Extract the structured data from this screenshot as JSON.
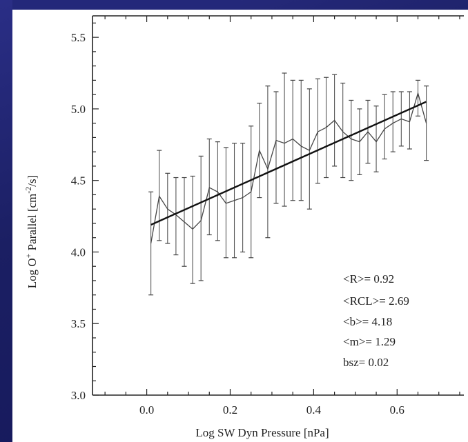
{
  "chart_data": {
    "type": "line",
    "xlabel": "Log SW Dyn Pressure [nPa]",
    "ylabel_main": "Log O",
    "ylabel_sup_plus": "+",
    "ylabel_mid": " Parallel [cm",
    "ylabel_sup_exp": "-2",
    "ylabel_end": "/s]",
    "xlim": [
      -0.13,
      0.76
    ],
    "ylim": [
      3.0,
      5.65
    ],
    "xticks": [
      0.0,
      0.2,
      0.4,
      0.6
    ],
    "xtick_labels": [
      "0.0",
      "0.2",
      "0.4",
      "0.6"
    ],
    "yticks": [
      3.0,
      3.5,
      4.0,
      4.5,
      5.0,
      5.5
    ],
    "ytick_labels": [
      "3.0",
      "3.5",
      "4.0",
      "4.5",
      "5.0",
      "5.5"
    ],
    "series": [
      {
        "x": [
          0.01,
          0.03,
          0.05,
          0.07,
          0.09,
          0.11,
          0.13,
          0.15,
          0.17,
          0.19,
          0.21,
          0.23,
          0.25,
          0.27,
          0.29,
          0.31,
          0.33,
          0.35,
          0.37,
          0.39,
          0.41,
          0.43,
          0.45,
          0.47,
          0.49,
          0.51,
          0.53,
          0.55,
          0.57,
          0.59,
          0.61,
          0.63,
          0.65,
          0.67
        ],
        "y": [
          4.06,
          4.39,
          4.3,
          4.26,
          4.21,
          4.16,
          4.22,
          4.45,
          4.42,
          4.34,
          4.36,
          4.38,
          4.42,
          4.71,
          4.58,
          4.78,
          4.76,
          4.79,
          4.74,
          4.71,
          4.84,
          4.87,
          4.92,
          4.84,
          4.79,
          4.77,
          4.84,
          4.77,
          4.86,
          4.9,
          4.93,
          4.91,
          5.11,
          4.9
        ],
        "err_low": [
          3.7,
          4.08,
          4.06,
          3.98,
          3.9,
          3.78,
          3.8,
          4.12,
          4.08,
          3.96,
          3.96,
          4.0,
          3.96,
          4.38,
          4.1,
          4.34,
          4.32,
          4.36,
          4.36,
          4.3,
          4.48,
          4.52,
          4.6,
          4.52,
          4.5,
          4.54,
          4.62,
          4.56,
          4.65,
          4.7,
          4.74,
          4.72,
          4.95,
          4.64
        ],
        "err_high": [
          4.42,
          4.71,
          4.55,
          4.52,
          4.52,
          4.53,
          4.67,
          4.79,
          4.77,
          4.73,
          4.76,
          4.76,
          4.88,
          5.04,
          5.16,
          5.12,
          5.25,
          5.2,
          5.2,
          5.14,
          5.21,
          5.22,
          5.24,
          5.18,
          5.06,
          5.0,
          5.06,
          5.02,
          5.1,
          5.12,
          5.12,
          5.12,
          5.2,
          5.16
        ]
      }
    ],
    "fit_line": {
      "x": [
        0.01,
        0.67
      ],
      "y": [
        4.19,
        5.05
      ]
    },
    "annotations": [
      "<R>= 0.92",
      "<RCL>= 2.69",
      "<b>= 4.18",
      "<m>= 1.29",
      "bsz= 0.02"
    ],
    "grid": false,
    "legend": "none"
  },
  "colors": {
    "background": "#1b1f63",
    "panel": "#ffffff",
    "ink": "#222222"
  }
}
